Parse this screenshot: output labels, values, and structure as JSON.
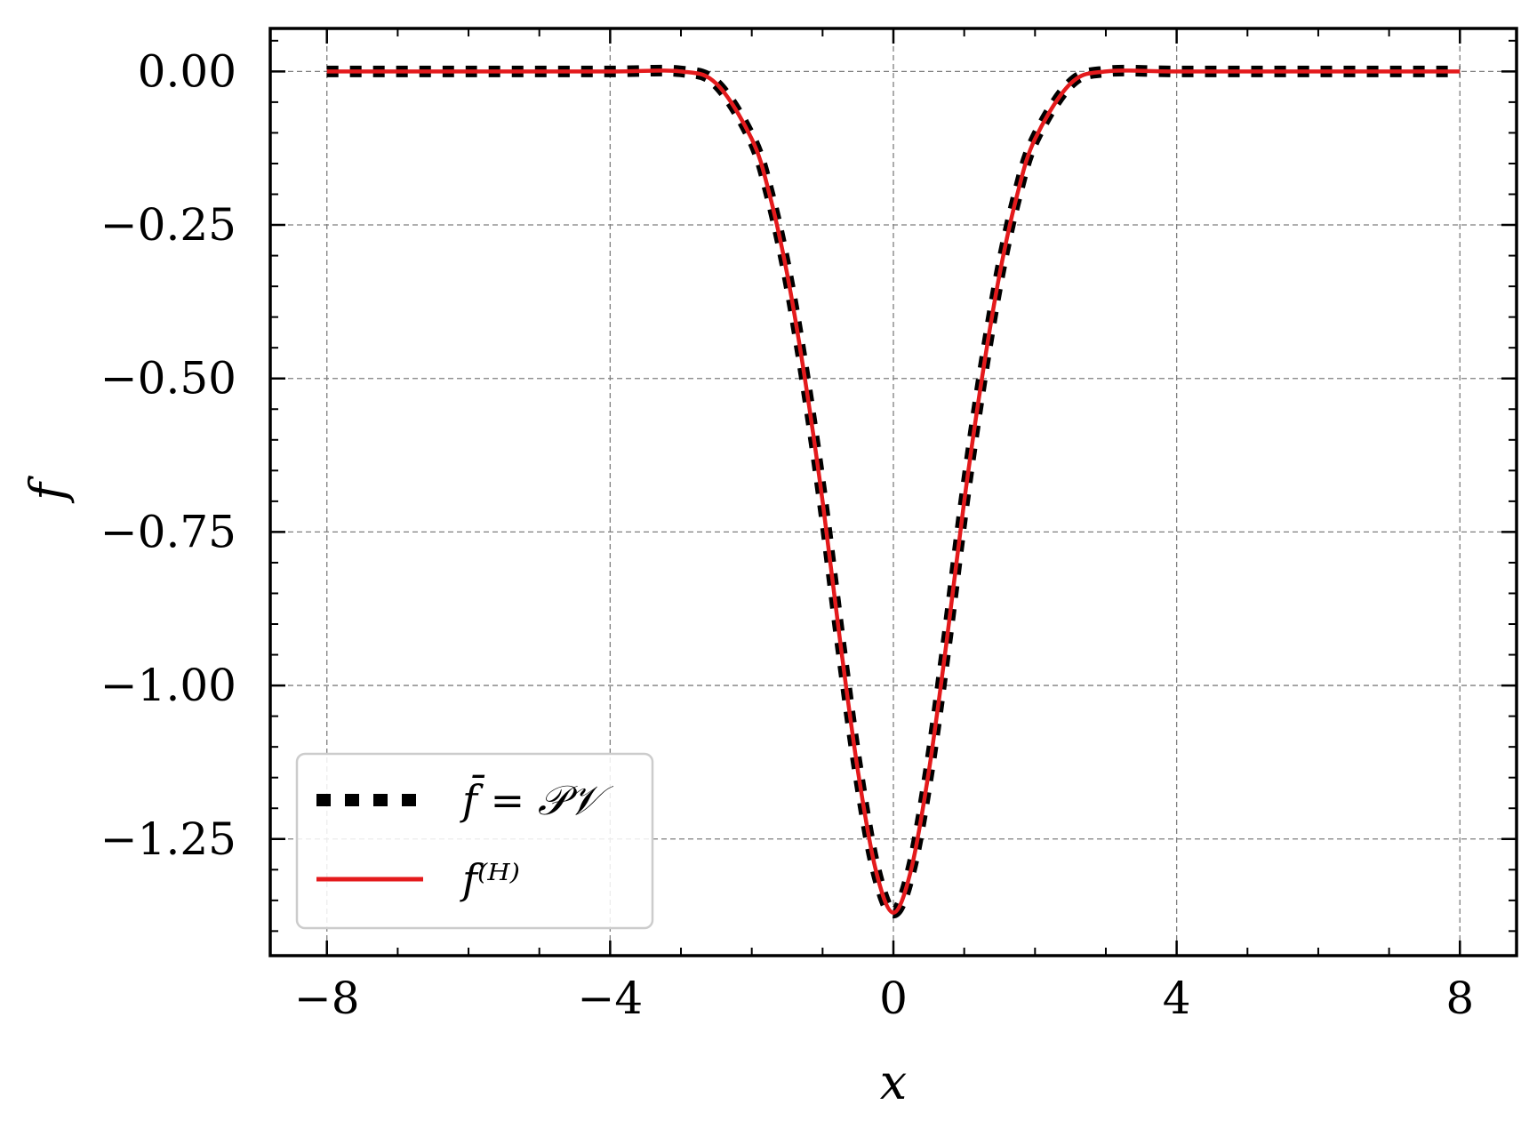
{
  "chart_data": {
    "type": "line",
    "title": "",
    "xlabel": "x",
    "ylabel": "f",
    "xlim": [
      -8.8,
      8.8
    ],
    "ylim": [
      -1.44,
      0.07
    ],
    "xticks": [
      -8,
      -4,
      0,
      4,
      8
    ],
    "xtick_labels": [
      "−8",
      "−4",
      "0",
      "4",
      "8"
    ],
    "yticks": [
      0.0,
      -0.25,
      -0.5,
      -0.75,
      -1.0,
      -1.25
    ],
    "ytick_labels": [
      "0.00",
      "−0.25",
      "−0.50",
      "−0.75",
      "−1.00",
      "−1.25"
    ],
    "grid": true,
    "legend_position": "lower-left",
    "x": [
      -8,
      -6,
      -4,
      -3,
      -2.5,
      -2,
      -1.75,
      -1.5,
      -1.25,
      -1,
      -0.75,
      -0.5,
      -0.25,
      0,
      0.25,
      0.5,
      0.75,
      1,
      1.25,
      1.5,
      1.75,
      2,
      2.5,
      3,
      4,
      6,
      8
    ],
    "series": [
      {
        "name": "f̄ = 𝒫𝒱",
        "style": "dotted",
        "color": "#000000",
        "values": [
          0,
          0,
          0,
          0,
          -0.02,
          -0.11,
          -0.2,
          -0.33,
          -0.5,
          -0.7,
          -0.93,
          -1.14,
          -1.3,
          -1.37,
          -1.3,
          -1.14,
          -0.93,
          -0.7,
          -0.5,
          -0.33,
          -0.2,
          -0.11,
          -0.02,
          0,
          0,
          0,
          0
        ]
      },
      {
        "name": "f⁽ᴴ⁾",
        "style": "solid",
        "color": "#e41a1c",
        "values": [
          0,
          0,
          0,
          0,
          -0.02,
          -0.11,
          -0.2,
          -0.33,
          -0.5,
          -0.7,
          -0.93,
          -1.14,
          -1.3,
          -1.37,
          -1.3,
          -1.14,
          -0.93,
          -0.7,
          -0.5,
          -0.33,
          -0.2,
          -0.11,
          -0.02,
          0,
          0,
          0,
          0
        ]
      }
    ]
  },
  "legend": {
    "entries": [
      {
        "label": "f̄ = 𝒫𝒱",
        "color": "#000000",
        "style": "dotted"
      },
      {
        "label": "f⁽ᴴ⁾",
        "color": "#e41a1c",
        "style": "solid"
      }
    ]
  }
}
